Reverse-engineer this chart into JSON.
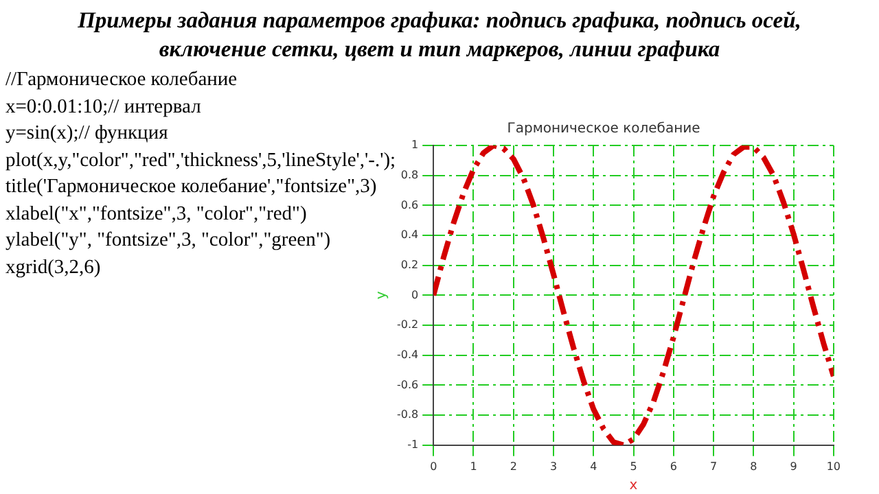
{
  "chart_data": {
    "type": "line",
    "title": "Гармоническое колебание",
    "xlabel": "x",
    "ylabel": "y",
    "annotations": [
      "Примеры задания параметров графика: подпись графика, подпись осей, включение сетки, цвет и тип маркеров, линии графика",
      "//Гармоническое колебание",
      "x=0:0.01:10;// интервал",
      "y=sin(x);// функция",
      "plot(x,y,\"color\",\"red\",'thickness',5,'lineStyle','-.');",
      "title('Гармоническое колебание',\"fontsize\",3)",
      "xlabel(\"x\",\"fontsize\",3, \"color\",\"red\")",
      "ylabel(\"y\", \"fontsize\",3, \"color\",\"green\")",
      "xgrid(3,2,6)"
    ],
    "x": [
      0,
      0.25,
      0.5,
      0.75,
      1,
      1.25,
      1.5,
      1.75,
      2,
      2.25,
      2.5,
      2.75,
      3,
      3.25,
      3.5,
      3.75,
      4,
      4.25,
      4.5,
      4.75,
      5,
      5.25,
      5.5,
      5.75,
      6,
      6.25,
      6.5,
      6.75,
      7,
      7.25,
      7.5,
      7.75,
      8,
      8.25,
      8.5,
      8.75,
      9,
      9.25,
      9.5,
      9.75,
      10
    ],
    "series": [
      {
        "color": "#d40000",
        "values": [
          0,
          0.25,
          0.48,
          0.68,
          0.84,
          0.95,
          1.0,
          0.98,
          0.91,
          0.78,
          0.6,
          0.38,
          0.14,
          -0.11,
          -0.35,
          -0.57,
          -0.76,
          -0.89,
          -0.98,
          -1.0,
          -0.96,
          -0.86,
          -0.71,
          -0.51,
          -0.28,
          -0.03,
          0.22,
          0.45,
          0.66,
          0.82,
          0.94,
          0.99,
          0.99,
          0.92,
          0.8,
          0.62,
          0.41,
          0.17,
          -0.08,
          -0.32,
          -0.54
        ]
      }
    ],
    "xlim": [
      0,
      10
    ],
    "xticks": [
      0,
      1,
      2,
      3,
      4,
      5,
      6,
      7,
      8,
      9,
      10
    ],
    "ylim": [
      -1,
      1
    ],
    "yticks": [
      -1,
      -0.8,
      -0.6,
      -0.4,
      -0.2,
      0,
      0.2,
      0.4,
      0.6,
      0.8,
      1
    ],
    "grid": true,
    "legend": false,
    "marker": "none",
    "line_style": "dashed"
  }
}
